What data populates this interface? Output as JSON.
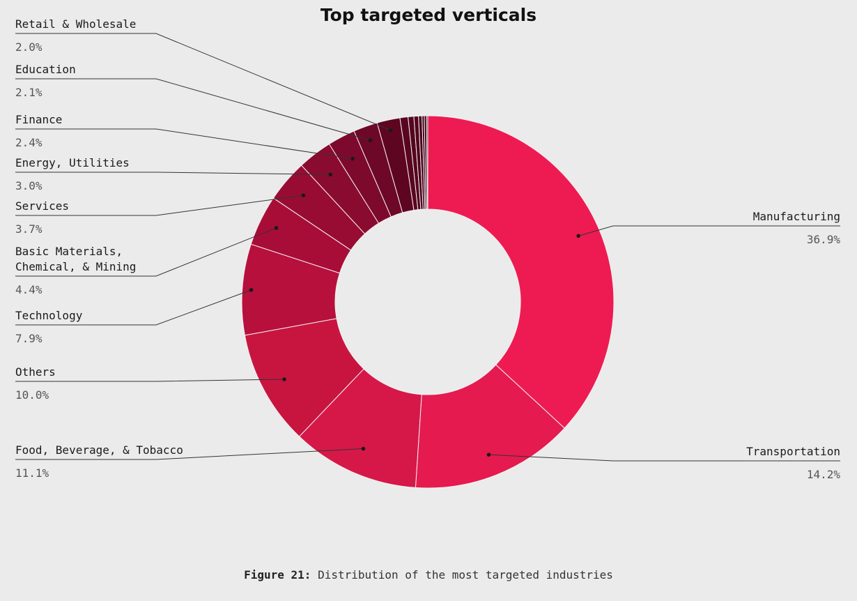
{
  "colors": {
    "background": "#ebebeb",
    "slice_gradient": [
      "#ee1b52",
      "#e51a4f",
      "#d61848",
      "#c8153f",
      "#b7103c",
      "#a80d38",
      "#980c34",
      "#8a0b30",
      "#7d0a2d",
      "#6e0828",
      "#5e0522"
    ],
    "leader_line": "#333333"
  },
  "chart_data": {
    "type": "pie",
    "variant": "donut",
    "title": "Top targeted verticals",
    "slices": [
      {
        "label": "Manufacturing",
        "value": 36.9,
        "value_label": "36.9%"
      },
      {
        "label": "Transportation",
        "value": 14.2,
        "value_label": "14.2%"
      },
      {
        "label": "Food, Beverage, & Tobacco",
        "value": 11.1,
        "value_label": "11.1%"
      },
      {
        "label": "Others",
        "value": 10.0,
        "value_label": "10.0%"
      },
      {
        "label": "Technology",
        "value": 7.9,
        "value_label": "7.9%"
      },
      {
        "label": "Basic Materials,\nChemical, & Mining",
        "value": 4.4,
        "value_label": "4.4%"
      },
      {
        "label": "Services",
        "value": 3.7,
        "value_label": "3.7%"
      },
      {
        "label": "Energy, Utilities",
        "value": 3.0,
        "value_label": "3.0%"
      },
      {
        "label": "Finance",
        "value": 2.4,
        "value_label": "2.4%"
      },
      {
        "label": "Education",
        "value": 2.1,
        "value_label": "2.1%"
      },
      {
        "label": "Retail & Wholesale",
        "value": 2.0,
        "value_label": "2.0%"
      },
      {
        "label": "",
        "value": 0.7,
        "value_label": ""
      },
      {
        "label": "",
        "value": 0.5,
        "value_label": ""
      },
      {
        "label": "",
        "value": 0.4,
        "value_label": ""
      },
      {
        "label": "",
        "value": 0.3,
        "value_label": ""
      },
      {
        "label": "",
        "value": 0.2,
        "value_label": ""
      },
      {
        "label": "",
        "value": 0.2,
        "value_label": ""
      },
      {
        "label": "",
        "value": 0.1,
        "value_label": ""
      }
    ]
  },
  "caption": {
    "figure": "Figure 21:",
    "text": "Distribution of the most targeted industries"
  }
}
